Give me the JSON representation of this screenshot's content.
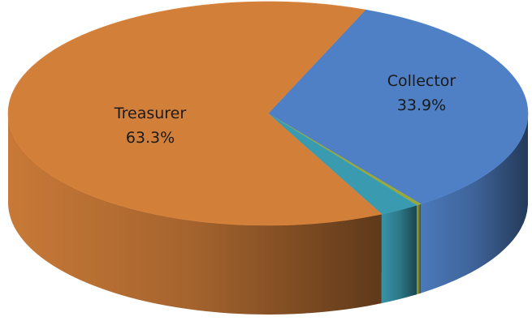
{
  "chart_data": {
    "type": "pie",
    "style": "3d",
    "slices": [
      {
        "name": "Collector",
        "value": 33.9,
        "label": "Collector",
        "value_label": "33.9%",
        "color": "#4f7fc4",
        "show_label": true
      },
      {
        "name": "Other 1",
        "value": 0.3,
        "label": "",
        "value_label": "",
        "color": "#9aa83a",
        "show_label": false
      },
      {
        "name": "Other 2",
        "value": 2.5,
        "label": "",
        "value_label": "",
        "color": "#3a9bb0",
        "show_label": false
      },
      {
        "name": "Treasurer",
        "value": 63.3,
        "label": "Treasurer",
        "value_label": "63.3%",
        "color": "#d27f3a",
        "show_label": true
      }
    ],
    "legend": "none"
  }
}
